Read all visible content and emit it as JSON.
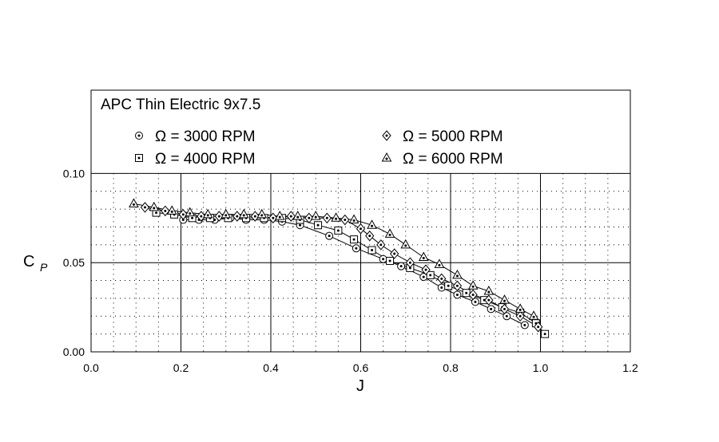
{
  "chart_data": {
    "type": "scatter",
    "title": "APC Thin Electric 9x7.5",
    "xlabel": "J",
    "ylabel_main": "C",
    "ylabel_sub": "P",
    "xlim": [
      0.0,
      1.2
    ],
    "ylim": [
      0.0,
      0.145
    ],
    "xticks": [
      "0.0",
      "0.2",
      "0.4",
      "0.6",
      "0.8",
      "1.0",
      "1.2"
    ],
    "yticks": [
      "0.00",
      "0.05",
      "0.10"
    ],
    "grid": true,
    "legend_position": "top",
    "series": [
      {
        "name": "Ω = 3000 RPM",
        "marker": "circle",
        "x": [
          0.205,
          0.24,
          0.275,
          0.31,
          0.345,
          0.385,
          0.425,
          0.465,
          0.53,
          0.59,
          0.65,
          0.69,
          0.74,
          0.78,
          0.815,
          0.855,
          0.89,
          0.925,
          0.965
        ],
        "y": [
          0.074,
          0.074,
          0.074,
          0.075,
          0.074,
          0.074,
          0.073,
          0.071,
          0.065,
          0.058,
          0.052,
          0.048,
          0.042,
          0.036,
          0.032,
          0.028,
          0.024,
          0.02,
          0.015
        ]
      },
      {
        "name": "Ω = 4000 RPM",
        "marker": "square",
        "x": [
          0.145,
          0.185,
          0.225,
          0.265,
          0.305,
          0.345,
          0.385,
          0.425,
          0.465,
          0.505,
          0.55,
          0.585,
          0.625,
          0.665,
          0.71,
          0.755,
          0.795,
          0.835,
          0.875,
          0.915,
          0.955,
          0.99,
          1.01
        ],
        "y": [
          0.078,
          0.077,
          0.075,
          0.075,
          0.075,
          0.075,
          0.075,
          0.075,
          0.074,
          0.071,
          0.068,
          0.063,
          0.057,
          0.051,
          0.047,
          0.043,
          0.037,
          0.033,
          0.029,
          0.025,
          0.022,
          0.016,
          0.01
        ]
      },
      {
        "name": "Ω = 5000 RPM",
        "marker": "diamond",
        "x": [
          0.12,
          0.165,
          0.205,
          0.245,
          0.285,
          0.325,
          0.365,
          0.405,
          0.445,
          0.485,
          0.525,
          0.565,
          0.6,
          0.62,
          0.645,
          0.675,
          0.71,
          0.745,
          0.78,
          0.815,
          0.85,
          0.885,
          0.92,
          0.955,
          0.995
        ],
        "y": [
          0.081,
          0.079,
          0.077,
          0.076,
          0.076,
          0.076,
          0.076,
          0.075,
          0.076,
          0.075,
          0.075,
          0.074,
          0.069,
          0.065,
          0.06,
          0.055,
          0.05,
          0.046,
          0.041,
          0.037,
          0.032,
          0.029,
          0.024,
          0.02,
          0.014
        ]
      },
      {
        "name": "Ω = 6000 RPM",
        "marker": "triangle",
        "x": [
          0.095,
          0.14,
          0.18,
          0.22,
          0.26,
          0.3,
          0.34,
          0.38,
          0.42,
          0.46,
          0.5,
          0.545,
          0.585,
          0.625,
          0.665,
          0.7,
          0.74,
          0.775,
          0.815,
          0.85,
          0.885,
          0.92,
          0.955,
          0.985
        ],
        "y": [
          0.083,
          0.081,
          0.079,
          0.078,
          0.077,
          0.077,
          0.077,
          0.077,
          0.076,
          0.076,
          0.076,
          0.075,
          0.074,
          0.071,
          0.066,
          0.06,
          0.053,
          0.049,
          0.043,
          0.037,
          0.034,
          0.029,
          0.024,
          0.02
        ]
      }
    ]
  }
}
